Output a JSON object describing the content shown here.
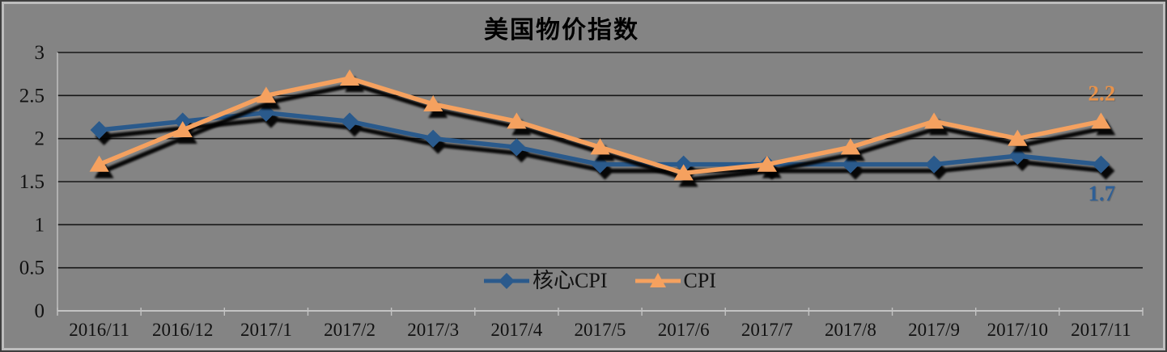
{
  "title": "美国物价指数",
  "colors": {
    "background": "#848484",
    "frame_outer": "#3e3e3e",
    "frame_inner": "#bdbdbd",
    "gridline": "#161616",
    "axis_line": "#c3c3c3",
    "title_text": "#000000",
    "tick_text": "#111111",
    "legend_text": "#111111",
    "core_cpi_line": "#2B5A8C",
    "core_cpi_label": "#2E5F96",
    "cpi_line": "#F5A15F",
    "cpi_label": "#E8924A",
    "shadow": "#000000"
  },
  "legend": {
    "items": [
      {
        "label": "核心CPI",
        "marker": "diamond-icon"
      },
      {
        "label": "CPI",
        "marker": "triangle-icon"
      }
    ]
  },
  "chart_data": {
    "type": "line",
    "title": "美国物价指数",
    "categories": [
      "2016/11",
      "2016/12",
      "2017/1",
      "2017/2",
      "2017/3",
      "2017/4",
      "2017/5",
      "2017/6",
      "2017/7",
      "2017/8",
      "2017/9",
      "2017/10",
      "2017/11"
    ],
    "series": [
      {
        "name": "核心CPI",
        "marker": "diamond",
        "color": "#2B5A8C",
        "label_color": "#2E5F96",
        "values": [
          2.1,
          2.2,
          2.3,
          2.2,
          2.0,
          1.9,
          1.7,
          1.7,
          1.7,
          1.7,
          1.7,
          1.8,
          1.7
        ],
        "end_label": "1.7",
        "end_label_position": "below"
      },
      {
        "name": "CPI",
        "marker": "triangle",
        "color": "#F5A15F",
        "label_color": "#E8924A",
        "values": [
          1.7,
          2.1,
          2.5,
          2.7,
          2.4,
          2.2,
          1.9,
          1.6,
          1.7,
          1.9,
          2.2,
          2.0,
          2.2
        ],
        "end_label": "2.2",
        "end_label_position": "above"
      }
    ],
    "xlabel": "",
    "ylabel": "",
    "ylim": [
      0,
      3
    ],
    "yticks": [
      0,
      0.5,
      1,
      1.5,
      2,
      2.5,
      3
    ],
    "grid": "horizontal-black",
    "legend_position": "bottom-center-inside",
    "style": "gray-plastic-excel-with-drop-shadows"
  }
}
